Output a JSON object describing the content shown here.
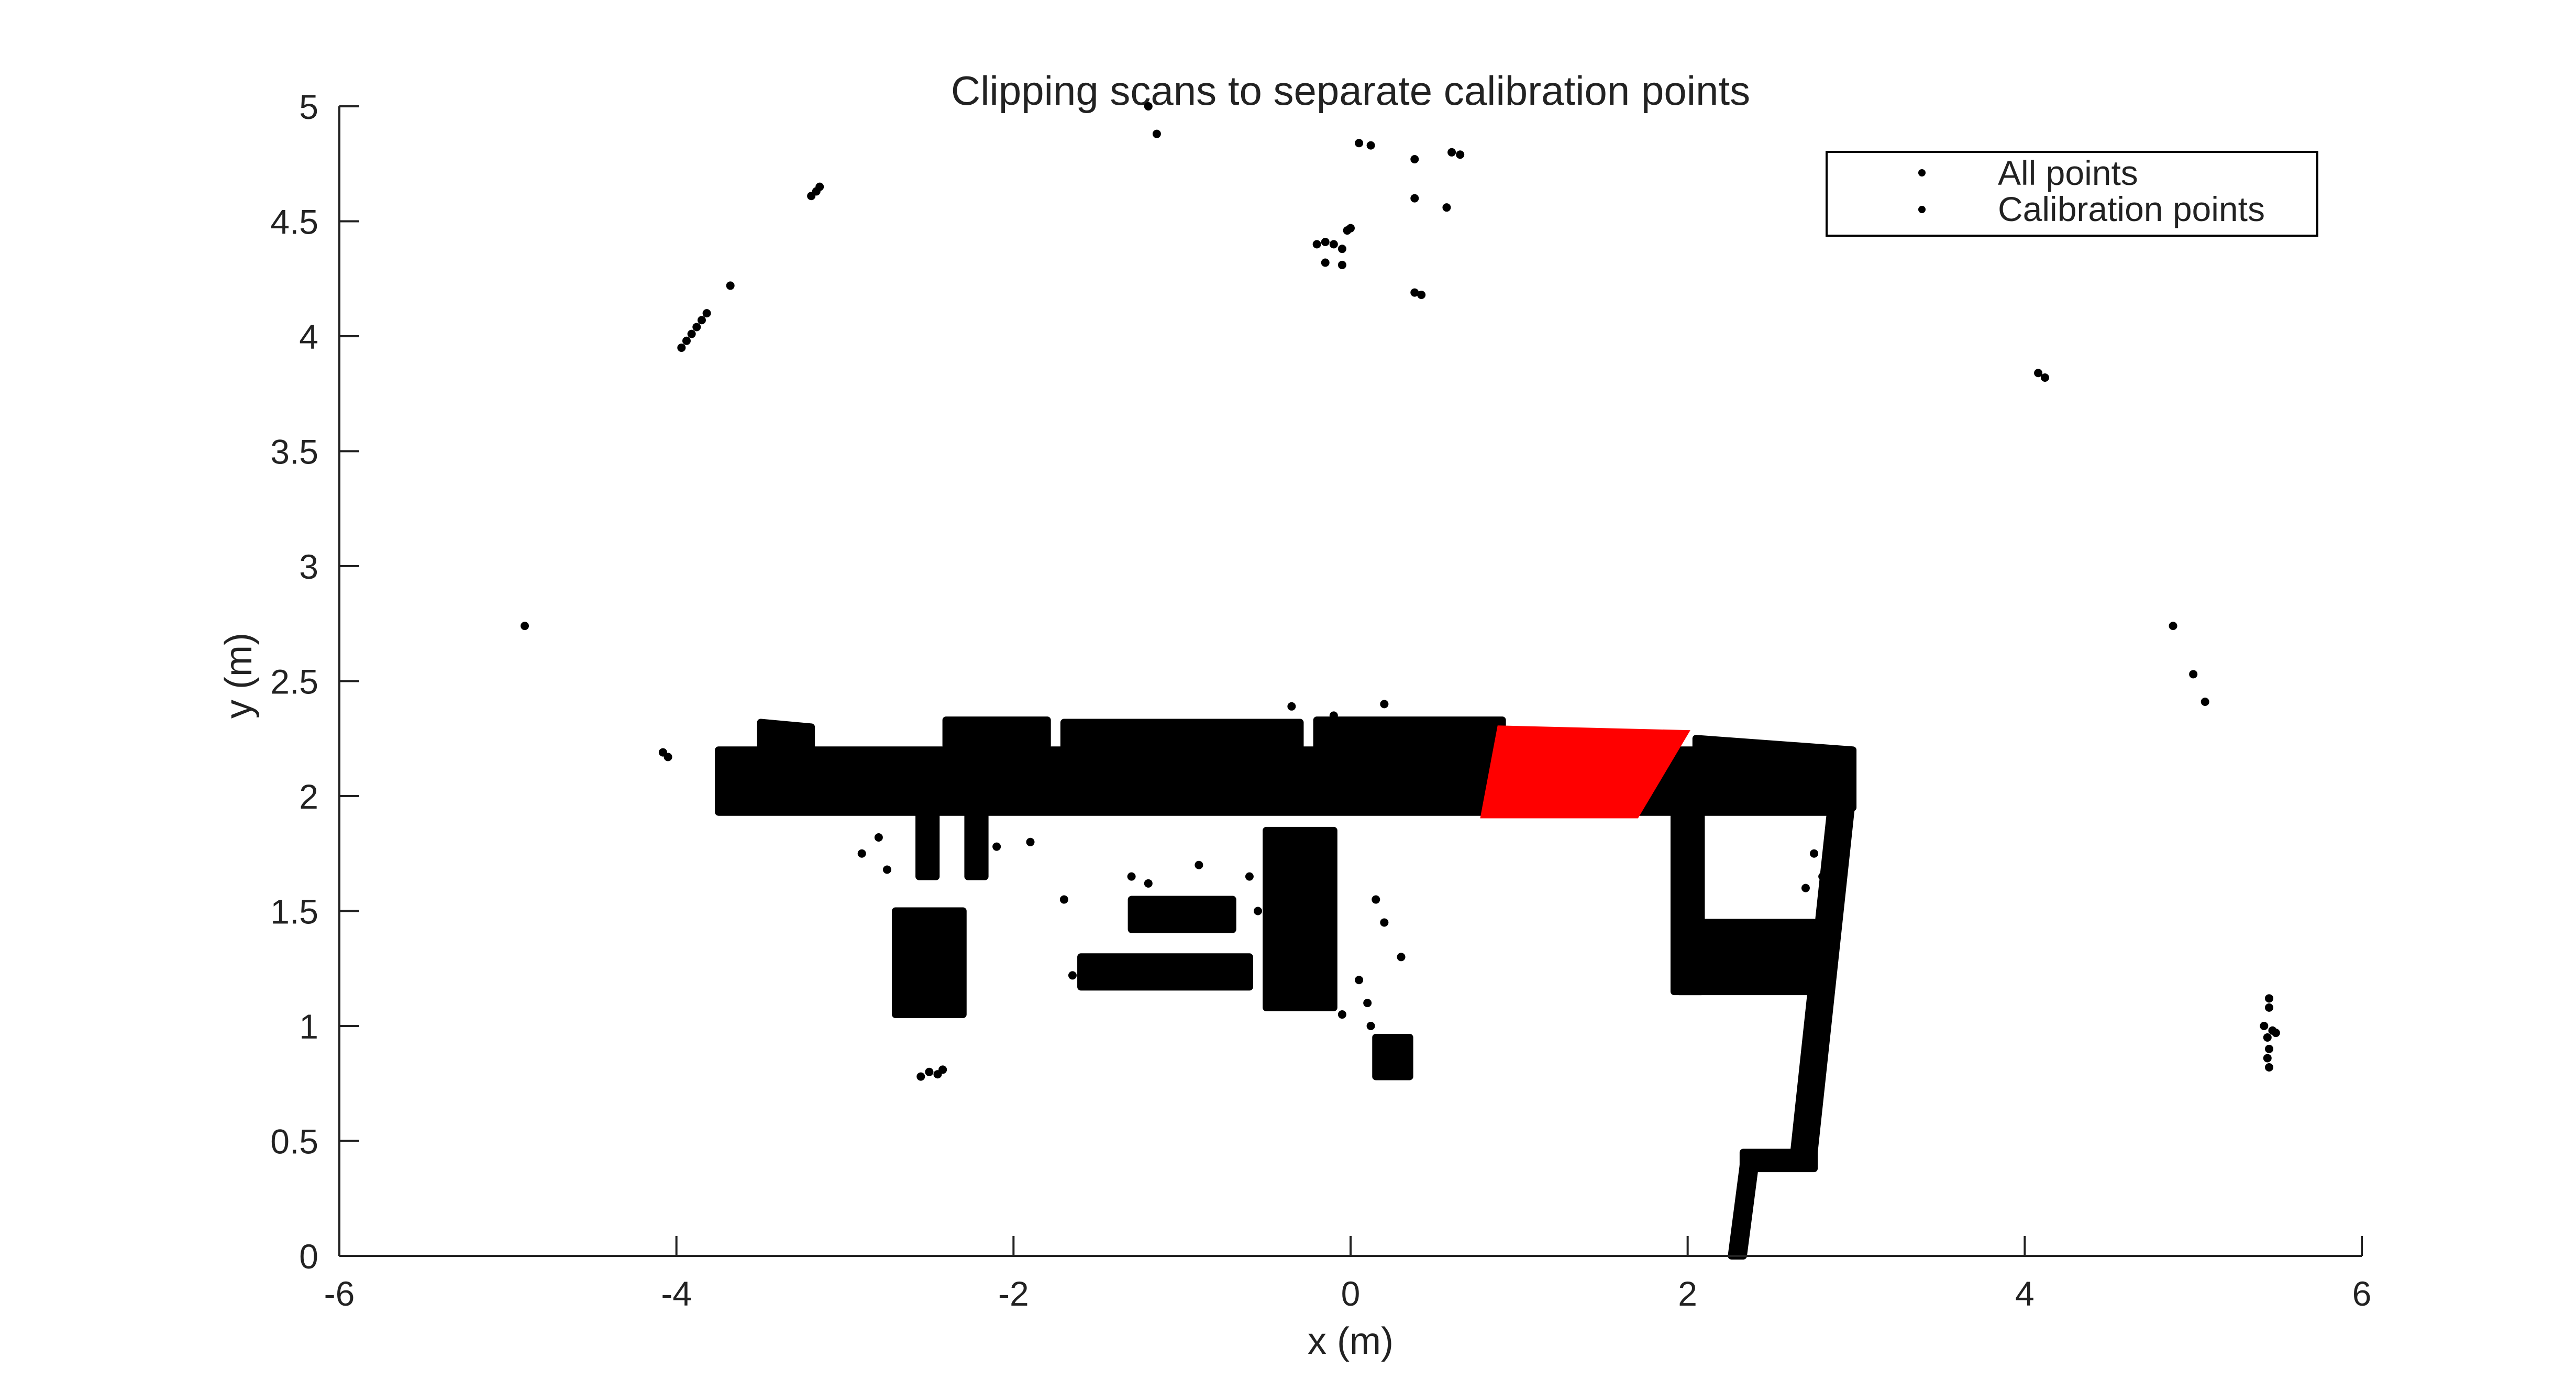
{
  "chart_data": {
    "type": "scatter",
    "title": "Clipping scans to separate calibration points",
    "xlabel": "x (m)",
    "ylabel": "y (m)",
    "xlim": [
      -6,
      6
    ],
    "ylim": [
      0,
      5
    ],
    "xticks": [
      -6,
      -4,
      -2,
      0,
      2,
      4,
      6
    ],
    "yticks": [
      0,
      0.5,
      1,
      1.5,
      2,
      2.5,
      3,
      3.5,
      4,
      4.5,
      5
    ],
    "grid": false,
    "legend_position": "top-right",
    "colors": {
      "all_points": "#000000",
      "calibration_points": "#ff0000"
    },
    "series": [
      {
        "name": "All points",
        "color": "#000000",
        "dense_regions": [
          {
            "label": "main-wall",
            "polygon": [
              [
                -3.75,
                2.2
              ],
              [
                2.95,
                2.2
              ],
              [
                2.95,
                1.93
              ],
              [
                -3.75,
                1.93
              ]
            ]
          },
          {
            "label": "upper-wall-left",
            "polygon": [
              [
                -3.5,
                2.32
              ],
              [
                -3.2,
                2.3
              ],
              [
                -3.2,
                2.2
              ],
              [
                -3.5,
                2.2
              ]
            ]
          },
          {
            "label": "upper-wall-mid",
            "polygon": [
              [
                -2.4,
                2.33
              ],
              [
                -1.8,
                2.33
              ],
              [
                -1.8,
                2.22
              ],
              [
                -2.4,
                2.22
              ]
            ]
          },
          {
            "label": "upper-wall-right",
            "polygon": [
              [
                -1.7,
                2.32
              ],
              [
                -0.3,
                2.32
              ],
              [
                -0.3,
                2.2
              ],
              [
                -1.7,
                2.2
              ]
            ]
          },
          {
            "label": "upper-wall-right-2",
            "polygon": [
              [
                -0.2,
                2.33
              ],
              [
                0.9,
                2.33
              ],
              [
                0.9,
                2.2
              ],
              [
                -0.2,
                2.2
              ]
            ]
          },
          {
            "label": "wall-right-edge",
            "polygon": [
              [
                2.05,
                2.25
              ],
              [
                2.98,
                2.2
              ],
              [
                2.98,
                1.95
              ],
              [
                2.05,
                1.95
              ]
            ]
          },
          {
            "label": "left-structure",
            "polygon": [
              [
                -2.7,
                1.5
              ],
              [
                -2.3,
                1.5
              ],
              [
                -2.3,
                1.05
              ],
              [
                -2.7,
                1.05
              ]
            ]
          },
          {
            "label": "left-post",
            "polygon": [
              [
                -2.56,
                1.95
              ],
              [
                -2.46,
                1.95
              ],
              [
                -2.46,
                1.65
              ],
              [
                -2.56,
                1.65
              ]
            ]
          },
          {
            "label": "left-post-2",
            "polygon": [
              [
                -2.27,
                1.95
              ],
              [
                -2.17,
                1.95
              ],
              [
                -2.17,
                1.65
              ],
              [
                -2.27,
                1.65
              ]
            ]
          },
          {
            "label": "table-left",
            "polygon": [
              [
                -1.6,
                1.3
              ],
              [
                -0.6,
                1.3
              ],
              [
                -0.6,
                1.17
              ],
              [
                -1.6,
                1.17
              ]
            ]
          },
          {
            "label": "table-mid",
            "polygon": [
              [
                -0.5,
                1.85
              ],
              [
                -0.1,
                1.85
              ],
              [
                -0.1,
                1.08
              ],
              [
                -0.5,
                1.08
              ]
            ]
          },
          {
            "label": "chair-right",
            "polygon": [
              [
                -1.3,
                1.55
              ],
              [
                -0.7,
                1.55
              ],
              [
                -0.7,
                1.42
              ],
              [
                -1.3,
                1.42
              ]
            ]
          },
          {
            "label": "small-blob",
            "polygon": [
              [
                0.15,
                0.95
              ],
              [
                0.35,
                0.95
              ],
              [
                0.35,
                0.78
              ],
              [
                0.15,
                0.78
              ]
            ]
          },
          {
            "label": "right-post",
            "polygon": [
              [
                1.92,
                1.95
              ],
              [
                2.08,
                1.95
              ],
              [
                2.08,
                1.15
              ],
              [
                1.92,
                1.15
              ]
            ]
          },
          {
            "label": "right-cabinet",
            "polygon": [
              [
                1.95,
                1.45
              ],
              [
                2.75,
                1.45
              ],
              [
                2.75,
                1.15
              ],
              [
                1.95,
                1.15
              ]
            ]
          },
          {
            "label": "right-wall-down",
            "polygon": [
              [
                2.85,
                1.95
              ],
              [
                2.97,
                1.95
              ],
              [
                2.75,
                0.45
              ],
              [
                2.63,
                0.45
              ]
            ]
          },
          {
            "label": "right-wall-lower",
            "polygon": [
              [
                2.33,
                0.45
              ],
              [
                2.75,
                0.45
              ],
              [
                2.75,
                0.38
              ],
              [
                2.33,
                0.38
              ]
            ]
          },
          {
            "label": "diagonal-floor",
            "polygon": [
              [
                2.34,
                0.45
              ],
              [
                2.41,
                0.45
              ],
              [
                2.33,
                0.0
              ],
              [
                2.26,
                0.0
              ]
            ]
          }
        ],
        "scattered_points": [
          [
            -4.9,
            2.74
          ],
          [
            -4.08,
            2.19
          ],
          [
            -4.05,
            2.17
          ],
          [
            -3.68,
            4.22
          ],
          [
            -3.97,
            3.95
          ],
          [
            -3.94,
            3.98
          ],
          [
            -3.91,
            4.01
          ],
          [
            -3.88,
            4.04
          ],
          [
            -3.85,
            4.07
          ],
          [
            -3.82,
            4.1
          ],
          [
            -3.2,
            4.61
          ],
          [
            -3.17,
            4.63
          ],
          [
            -3.15,
            4.65
          ],
          [
            -1.15,
            4.88
          ],
          [
            -1.2,
            5.0
          ],
          [
            0.05,
            4.84
          ],
          [
            0.12,
            4.83
          ],
          [
            0.38,
            4.77
          ],
          [
            0.6,
            4.8
          ],
          [
            0.65,
            4.79
          ],
          [
            0.38,
            4.6
          ],
          [
            0.57,
            4.56
          ],
          [
            -0.2,
            4.4
          ],
          [
            -0.15,
            4.41
          ],
          [
            -0.1,
            4.4
          ],
          [
            -0.05,
            4.38
          ],
          [
            -0.02,
            4.46
          ],
          [
            0.0,
            4.47
          ],
          [
            -0.15,
            4.32
          ],
          [
            -0.05,
            4.31
          ],
          [
            0.38,
            4.19
          ],
          [
            0.42,
            4.18
          ],
          [
            -0.35,
            2.39
          ],
          [
            0.2,
            2.4
          ],
          [
            -0.1,
            2.35
          ],
          [
            4.08,
            3.84
          ],
          [
            4.12,
            3.82
          ],
          [
            4.88,
            2.74
          ],
          [
            5.0,
            2.53
          ],
          [
            5.07,
            2.41
          ],
          [
            5.45,
            1.12
          ],
          [
            5.45,
            1.08
          ],
          [
            5.42,
            1.0
          ],
          [
            5.47,
            0.98
          ],
          [
            5.44,
            0.95
          ],
          [
            5.49,
            0.97
          ],
          [
            5.45,
            0.9
          ],
          [
            5.44,
            0.86
          ],
          [
            5.45,
            0.82
          ],
          [
            -2.5,
            0.8
          ],
          [
            -2.45,
            0.79
          ],
          [
            -2.55,
            0.78
          ],
          [
            -2.42,
            0.81
          ],
          [
            -2.9,
            1.75
          ],
          [
            -2.8,
            1.82
          ],
          [
            -2.75,
            1.68
          ],
          [
            -2.1,
            1.78
          ],
          [
            -1.9,
            1.8
          ],
          [
            -1.3,
            1.65
          ],
          [
            -1.2,
            1.62
          ],
          [
            -0.9,
            1.7
          ],
          [
            -0.6,
            1.65
          ],
          [
            -0.55,
            1.5
          ],
          [
            -1.7,
            1.55
          ],
          [
            -1.65,
            1.22
          ],
          [
            0.15,
            1.55
          ],
          [
            0.2,
            1.45
          ],
          [
            0.3,
            1.3
          ],
          [
            0.05,
            1.2
          ],
          [
            0.1,
            1.1
          ],
          [
            0.12,
            1.0
          ],
          [
            -0.05,
            1.05
          ],
          [
            2.75,
            1.75
          ],
          [
            2.8,
            1.65
          ],
          [
            2.7,
            1.6
          ]
        ]
      },
      {
        "name": "Calibration points",
        "color": "#ff0000",
        "region": [
          [
            0.88,
            2.3
          ],
          [
            2.0,
            2.28
          ],
          [
            1.7,
            1.91
          ],
          [
            0.78,
            1.91
          ]
        ]
      }
    ]
  }
}
